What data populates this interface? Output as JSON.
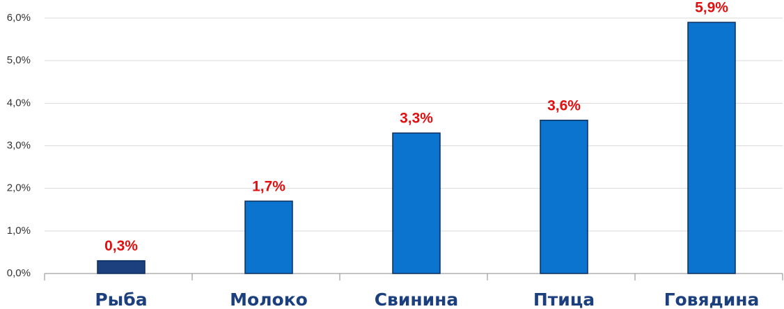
{
  "chart_data": {
    "type": "bar",
    "categories": [
      "Рыба",
      "Молоко",
      "Свинина",
      "Птица",
      "Говядина"
    ],
    "values": [
      0.3,
      1.7,
      3.3,
      3.6,
      5.9
    ],
    "value_labels": [
      "0,3%",
      "1,7%",
      "3,3%",
      "3,6%",
      "5,9%"
    ],
    "colors": [
      "#1c3f7e",
      "#0a74cf",
      "#0a74cf",
      "#0a74cf",
      "#0a74cf"
    ],
    "ylim": [
      0,
      6
    ],
    "yticks": [
      {
        "value": 0,
        "label": "0,0%"
      },
      {
        "value": 1,
        "label": "1,0%"
      },
      {
        "value": 2,
        "label": "2,0%"
      },
      {
        "value": 3,
        "label": "3,0%"
      },
      {
        "value": 4,
        "label": "4,0%"
      },
      {
        "value": 5,
        "label": "5,0%"
      },
      {
        "value": 6,
        "label": "6,0%"
      }
    ],
    "grid": true
  }
}
